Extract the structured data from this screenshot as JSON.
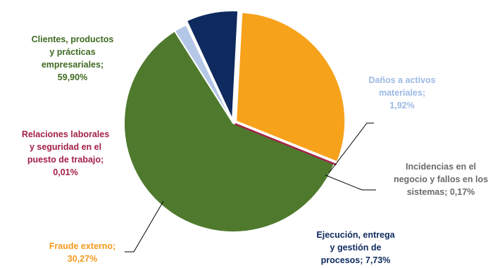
{
  "chart_data": {
    "type": "pie",
    "title": "",
    "slices": [
      {
        "label_lines": [
          "Clientes, productos",
          "y prácticas",
          "empresariales;",
          "59,90%"
        ],
        "value": 59.9,
        "value_text": "59,90%",
        "color": "#4F7A2E",
        "label_color": "#3F6B22"
      },
      {
        "label_lines": [
          "Daños a activos",
          "materiales;",
          "1,92%"
        ],
        "value": 1.92,
        "value_text": "1,92%",
        "color": "#B4C7E7",
        "label_color": "#9DB9E4"
      },
      {
        "label_lines": [
          "Incidencias en el",
          "negocio y fallos en los",
          "sistemas; 0,17%"
        ],
        "value": 0.17,
        "value_text": "0,17%",
        "color": "#C49A2A",
        "label_color": "#6B6B6B"
      },
      {
        "label_lines": [
          "Ejecución, entrega",
          "y gestión de",
          "procesos; 7,73%"
        ],
        "value": 7.73,
        "value_text": "7,73%",
        "color": "#0E2A5E",
        "label_color": "#0E2A5E"
      },
      {
        "label_lines": [
          "Fraude externo;",
          "30,27%"
        ],
        "value": 30.27,
        "value_text": "30,27%",
        "color": "#F7A21B",
        "label_color": "#F39A1E"
      },
      {
        "label_lines": [
          "Relaciones laborales",
          "y seguridad en el",
          "puesto de trabajo;",
          "0,01%"
        ],
        "value": 0.01,
        "value_text": "0,01%",
        "color": "#A31F45",
        "label_color": "#A31F45"
      }
    ]
  }
}
